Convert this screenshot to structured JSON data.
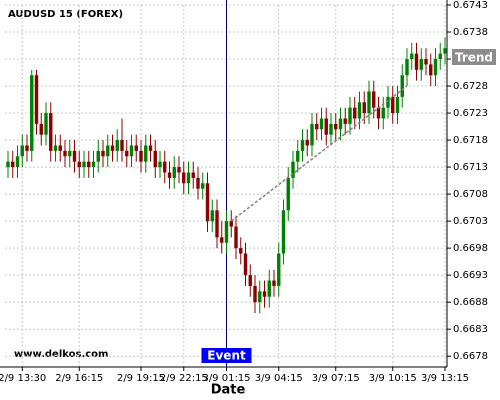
{
  "chart_data": {
    "type": "candlestick",
    "title": "AUDUSD 15 (FOREX)",
    "x_label": "Date",
    "watermark": "www.delkos.com",
    "categories": [
      null,
      null,
      null,
      "2/9 13:30",
      null,
      null,
      null,
      null,
      null,
      null,
      null,
      null,
      null,
      null,
      null,
      "2/9 16:15",
      null,
      null,
      null,
      null,
      null,
      null,
      null,
      null,
      null,
      null,
      null,
      null,
      "2/9 19:15",
      null,
      null,
      null,
      null,
      null,
      null,
      null,
      null,
      "2/9 22:15",
      null,
      null,
      null,
      null,
      null,
      null,
      null,
      null,
      "3/9 01:15",
      null,
      null,
      null,
      null,
      null,
      null,
      null,
      null,
      null,
      null,
      "3/9 04:15",
      null,
      null,
      null,
      null,
      null,
      null,
      null,
      null,
      null,
      null,
      null,
      "3/9 07:15",
      null,
      null,
      null,
      null,
      null,
      null,
      null,
      null,
      null,
      null,
      null,
      "3/9 10:15",
      null,
      null,
      null,
      null,
      null,
      null,
      null,
      null,
      null,
      null,
      "3/9 13:15"
    ],
    "open": [
      0.6713,
      0.6714,
      0.6713,
      0.6715,
      0.6717,
      0.6716,
      0.673,
      0.6721,
      0.6719,
      0.6723,
      0.6716,
      0.6717,
      0.6716,
      0.6715,
      0.6716,
      0.6714,
      0.6713,
      0.6714,
      0.6713,
      0.6714,
      0.6716,
      0.6715,
      0.6717,
      0.6716,
      0.6718,
      0.6716,
      0.6715,
      0.6717,
      0.6716,
      0.6714,
      0.6717,
      0.6716,
      0.6713,
      0.6714,
      0.6712,
      0.6711,
      0.6713,
      0.6712,
      0.671,
      0.6712,
      0.6711,
      0.6709,
      0.671,
      0.6703,
      0.6705,
      0.67,
      0.6699,
      0.6703,
      0.6702,
      0.6698,
      0.6697,
      0.6693,
      0.6691,
      0.6688,
      0.669,
      0.6689,
      0.6692,
      0.6691,
      0.6697,
      0.6705,
      0.6711,
      0.6714,
      0.6716,
      0.6718,
      0.6717,
      0.6721,
      0.672,
      0.6722,
      0.6719,
      0.6721,
      0.672,
      0.6722,
      0.6721,
      0.6724,
      0.6722,
      0.6725,
      0.6723,
      0.6727,
      0.6724,
      0.6722,
      0.6724,
      0.6726,
      0.6723,
      0.6726,
      0.673,
      0.6733,
      0.6734,
      0.6731,
      0.6733,
      0.6732,
      0.673,
      0.6733,
      0.6734
    ],
    "high": [
      0.6716,
      0.6716,
      0.6717,
      0.6719,
      0.6719,
      0.6731,
      0.6731,
      0.6723,
      0.6725,
      0.6725,
      0.6719,
      0.6719,
      0.6718,
      0.6718,
      0.6718,
      0.6716,
      0.6716,
      0.6716,
      0.6716,
      0.6718,
      0.6718,
      0.6719,
      0.6719,
      0.672,
      0.6722,
      0.6718,
      0.6719,
      0.6719,
      0.6718,
      0.6719,
      0.6719,
      0.6718,
      0.6716,
      0.6716,
      0.6714,
      0.6715,
      0.6715,
      0.6714,
      0.6714,
      0.6714,
      0.6713,
      0.6712,
      0.6712,
      0.6707,
      0.6707,
      0.6703,
      0.6705,
      0.6705,
      0.6704,
      0.67,
      0.6699,
      0.6695,
      0.6693,
      0.6692,
      0.6692,
      0.6694,
      0.6694,
      0.6699,
      0.6707,
      0.6713,
      0.6716,
      0.6718,
      0.672,
      0.672,
      0.6723,
      0.6723,
      0.6724,
      0.6724,
      0.6723,
      0.6723,
      0.6724,
      0.6724,
      0.6726,
      0.6726,
      0.6727,
      0.6727,
      0.6729,
      0.6729,
      0.6726,
      0.6726,
      0.6728,
      0.6728,
      0.6728,
      0.6732,
      0.6735,
      0.6736,
      0.6736,
      0.6735,
      0.6735,
      0.6734,
      0.6735,
      0.6736,
      0.6737
    ],
    "low": [
      0.6711,
      0.6711,
      0.6711,
      0.6713,
      0.6714,
      0.6714,
      0.6719,
      0.6717,
      0.6717,
      0.6714,
      0.6714,
      0.6714,
      0.6713,
      0.6713,
      0.6712,
      0.6711,
      0.6711,
      0.6711,
      0.6711,
      0.6712,
      0.6713,
      0.6713,
      0.6714,
      0.6714,
      0.6714,
      0.6713,
      0.6713,
      0.6714,
      0.6712,
      0.6712,
      0.6714,
      0.6711,
      0.6711,
      0.671,
      0.6709,
      0.6709,
      0.671,
      0.6708,
      0.6708,
      0.6709,
      0.6707,
      0.6707,
      0.6701,
      0.6701,
      0.6698,
      0.6697,
      0.6697,
      0.67,
      0.6696,
      0.6695,
      0.6691,
      0.6689,
      0.6686,
      0.6686,
      0.6687,
      0.6687,
      0.6689,
      0.6689,
      0.6695,
      0.6703,
      0.6709,
      0.6712,
      0.6714,
      0.6715,
      0.6715,
      0.6718,
      0.6718,
      0.6717,
      0.6717,
      0.6718,
      0.6718,
      0.6719,
      0.6719,
      0.672,
      0.672,
      0.6721,
      0.6721,
      0.6722,
      0.672,
      0.672,
      0.6722,
      0.6721,
      0.6721,
      0.6724,
      0.6728,
      0.6731,
      0.6729,
      0.6729,
      0.673,
      0.6728,
      0.6728,
      0.6731,
      0.6732
    ],
    "close": [
      0.6714,
      0.6713,
      0.6715,
      0.6717,
      0.6716,
      0.673,
      0.6721,
      0.6719,
      0.6723,
      0.6716,
      0.6717,
      0.6716,
      0.6715,
      0.6716,
      0.6714,
      0.6713,
      0.6714,
      0.6713,
      0.6714,
      0.6716,
      0.6715,
      0.6717,
      0.6716,
      0.6718,
      0.6716,
      0.6715,
      0.6717,
      0.6716,
      0.6714,
      0.6717,
      0.6716,
      0.6713,
      0.6714,
      0.6712,
      0.6711,
      0.6713,
      0.6712,
      0.671,
      0.6712,
      0.6711,
      0.6709,
      0.671,
      0.6703,
      0.6705,
      0.67,
      0.6699,
      0.6703,
      0.6702,
      0.6698,
      0.6697,
      0.6693,
      0.6691,
      0.6688,
      0.669,
      0.6689,
      0.6692,
      0.6691,
      0.6697,
      0.6705,
      0.6711,
      0.6714,
      0.6716,
      0.6718,
      0.6717,
      0.6721,
      0.672,
      0.6722,
      0.6719,
      0.6721,
      0.672,
      0.6722,
      0.6721,
      0.6724,
      0.6722,
      0.6725,
      0.6723,
      0.6727,
      0.6724,
      0.6722,
      0.6724,
      0.6726,
      0.6723,
      0.6726,
      0.673,
      0.6733,
      0.6734,
      0.6731,
      0.6733,
      0.6732,
      0.673,
      0.6733,
      0.6734,
      0.6735
    ],
    "up_color": "#008000",
    "down_color": "#8b0000",
    "ylim": [
      0.6676,
      0.6743
    ],
    "yticks": [
      0.6678,
      0.6683,
      0.6688,
      0.6693,
      0.6698,
      0.6703,
      0.6708,
      0.6713,
      0.6718,
      0.6723,
      0.6728,
      0.6733,
      0.6738,
      0.6743
    ],
    "grid": true,
    "trend": {
      "name": "Trend",
      "x": [
        47,
        84
      ],
      "values": [
        0.6703,
        0.6728
      ]
    },
    "event": {
      "name": "Event",
      "x": 46
    }
  }
}
